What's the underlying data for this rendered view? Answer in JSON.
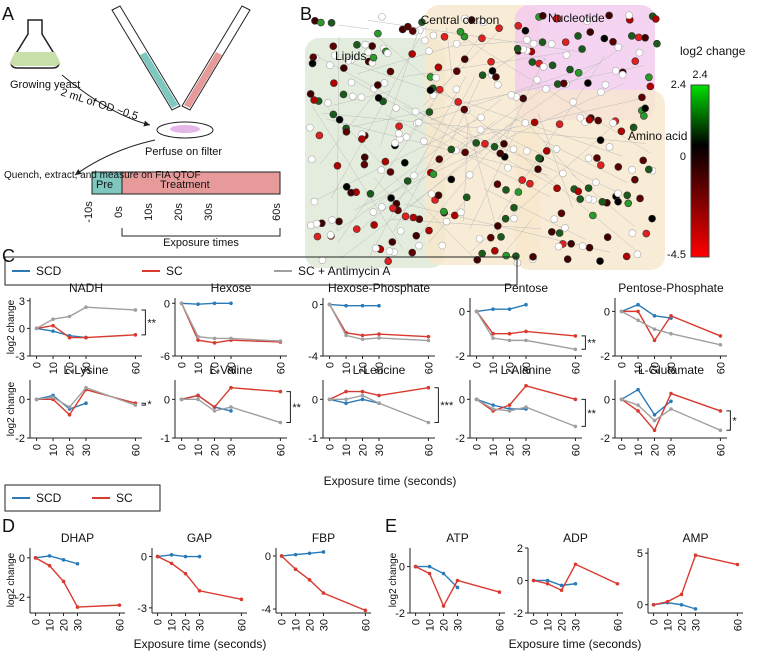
{
  "panels": {
    "letters": [
      "A",
      "B",
      "C",
      "D",
      "E"
    ],
    "a": {
      "flask": "Growing yeast",
      "transfer": "2 mL of OD ~0.5",
      "filter": "Perfuse on filter",
      "quench": "Quench, extract, and measure on FIA QTOF",
      "pre": "Pre",
      "treatment": "Treatment",
      "times": [
        "-10s",
        "0s",
        "10s",
        "20s",
        "30s",
        "60s"
      ],
      "exposure": "Exposure times"
    },
    "b": {
      "regions": [
        "Lipids",
        "Central carbon",
        "Nucleotide",
        "Amino acid"
      ],
      "colorbar_title": "log2 change",
      "colorbar_ticks": [
        "2.4",
        "0",
        "-4.5"
      ]
    },
    "ylabel": "log2 change",
    "xlabel": "Exposure time (seconds)"
  },
  "chart_data": [
    {
      "type": "line",
      "title": "NADH",
      "x": [
        0,
        10,
        20,
        30,
        60
      ],
      "xticks": [
        0,
        10,
        20,
        30,
        60
      ],
      "xlim": [
        -4,
        64
      ],
      "ylim": [
        -3,
        3.3
      ],
      "yticks": [
        -3,
        0,
        3
      ],
      "annotation": "**",
      "series": [
        {
          "name": "SCD",
          "color": "#2a7ab8",
          "values": [
            0,
            -0.3,
            -0.8,
            -1,
            null
          ]
        },
        {
          "name": "SC",
          "color": "#d93a2f",
          "values": [
            0,
            0.3,
            -1,
            -1,
            -0.7
          ]
        },
        {
          "name": "SC + Antimycin A",
          "color": "#a0a0a0",
          "values": [
            0,
            1,
            1.3,
            2.3,
            2
          ]
        }
      ]
    },
    {
      "type": "line",
      "title": "Hexose",
      "x": [
        0,
        10,
        20,
        30,
        60
      ],
      "xticks": [
        0,
        10,
        20,
        30,
        60
      ],
      "xlim": [
        -4,
        64
      ],
      "ylim": [
        -6,
        0.6
      ],
      "yticks": [
        -6,
        0
      ],
      "series": [
        {
          "name": "SCD",
          "color": "#2a7ab8",
          "values": [
            0,
            -0.1,
            0,
            0,
            null
          ]
        },
        {
          "name": "SC",
          "color": "#d93a2f",
          "values": [
            0,
            -4.2,
            -4.5,
            -4.2,
            -4.4
          ]
        },
        {
          "name": "SC + Antimycin A",
          "color": "#a0a0a0",
          "values": [
            0,
            -3.8,
            -4,
            -4,
            -4.3
          ]
        }
      ]
    },
    {
      "type": "line",
      "title": "Hexose-Phosphate",
      "x": [
        0,
        10,
        20,
        30,
        60
      ],
      "xticks": [
        0,
        10,
        20,
        30,
        60
      ],
      "xlim": [
        -4,
        64
      ],
      "ylim": [
        -4,
        0.5
      ],
      "yticks": [
        -4,
        0
      ],
      "series": [
        {
          "name": "SCD",
          "color": "#2a7ab8",
          "values": [
            0,
            -0.1,
            -0.1,
            -0.1,
            null
          ]
        },
        {
          "name": "SC",
          "color": "#d93a2f",
          "values": [
            0,
            -2.2,
            -2.4,
            -2.3,
            -2.5
          ]
        },
        {
          "name": "SC + Antimycin A",
          "color": "#a0a0a0",
          "values": [
            0,
            -2.4,
            -2.7,
            -2.6,
            -2.8
          ]
        }
      ]
    },
    {
      "type": "line",
      "title": "Pentose",
      "x": [
        0,
        10,
        20,
        30,
        60
      ],
      "xticks": [
        0,
        10,
        20,
        30,
        60
      ],
      "xlim": [
        -4,
        64
      ],
      "ylim": [
        -2,
        0.6
      ],
      "yticks": [
        -2,
        0
      ],
      "annotation": "**",
      "series": [
        {
          "name": "SCD",
          "color": "#2a7ab8",
          "values": [
            0,
            0.1,
            0.1,
            0.3,
            null
          ]
        },
        {
          "name": "SC",
          "color": "#d93a2f",
          "values": [
            0,
            -1,
            -1,
            -0.9,
            -1.1
          ]
        },
        {
          "name": "SC + Antimycin A",
          "color": "#a0a0a0",
          "values": [
            0,
            -1.2,
            -1.3,
            -1.3,
            -1.7
          ]
        }
      ]
    },
    {
      "type": "line",
      "title": "Pentose-Phosphate",
      "x": [
        0,
        10,
        20,
        30,
        60
      ],
      "xticks": [
        0,
        10,
        20,
        30,
        60
      ],
      "xlim": [
        -4,
        64
      ],
      "ylim": [
        -2,
        0.6
      ],
      "yticks": [
        -2,
        0
      ],
      "series": [
        {
          "name": "SCD",
          "color": "#2a7ab8",
          "values": [
            0,
            0.3,
            -0.2,
            -0.3,
            null
          ]
        },
        {
          "name": "SC",
          "color": "#d93a2f",
          "values": [
            0,
            0,
            -1.3,
            -0.2,
            -1.1
          ]
        },
        {
          "name": "SC + Antimycin A",
          "color": "#a0a0a0",
          "values": [
            0,
            -0.4,
            -0.8,
            -1,
            -1.5
          ]
        }
      ]
    },
    {
      "type": "line",
      "title": "L-Lysine",
      "x": [
        0,
        10,
        20,
        30,
        60
      ],
      "xticks": [
        0,
        10,
        20,
        30,
        60
      ],
      "xlim": [
        -4,
        64
      ],
      "ylim": [
        -2,
        1
      ],
      "yticks": [
        -2,
        0
      ],
      "annotation": "*",
      "series": [
        {
          "name": "SCD",
          "color": "#2a7ab8",
          "values": [
            0,
            0.2,
            -0.5,
            -0.2,
            null
          ]
        },
        {
          "name": "SC",
          "color": "#d93a2f",
          "values": [
            0,
            0,
            -0.8,
            0.5,
            -0.2
          ]
        },
        {
          "name": "SC + Antimycin A",
          "color": "#a0a0a0",
          "values": [
            0,
            0.1,
            -0.4,
            0.6,
            -0.3
          ]
        }
      ]
    },
    {
      "type": "line",
      "title": "L-Valine",
      "x": [
        0,
        10,
        20,
        30,
        60
      ],
      "xticks": [
        0,
        10,
        20,
        30,
        60
      ],
      "xlim": [
        -4,
        64
      ],
      "ylim": [
        -1,
        0.5
      ],
      "yticks": [
        -1,
        0
      ],
      "annotation": "**",
      "series": [
        {
          "name": "SCD",
          "color": "#2a7ab8",
          "values": [
            0,
            0.1,
            -0.2,
            -0.3,
            null
          ]
        },
        {
          "name": "SC",
          "color": "#d93a2f",
          "values": [
            0,
            0.1,
            -0.2,
            0.3,
            0.2
          ]
        },
        {
          "name": "SC + Antimycin A",
          "color": "#a0a0a0",
          "values": [
            0,
            0,
            -0.3,
            -0.2,
            -0.6
          ]
        }
      ]
    },
    {
      "type": "line",
      "title": "L-Leucine",
      "x": [
        0,
        10,
        20,
        30,
        60
      ],
      "xticks": [
        0,
        10,
        20,
        30,
        60
      ],
      "xlim": [
        -4,
        64
      ],
      "ylim": [
        -1,
        0.5
      ],
      "yticks": [
        -1,
        0
      ],
      "annotation": "***",
      "series": [
        {
          "name": "SCD",
          "color": "#2a7ab8",
          "values": [
            0,
            -0.1,
            0,
            -0.1,
            null
          ]
        },
        {
          "name": "SC",
          "color": "#d93a2f",
          "values": [
            0,
            0.2,
            0.2,
            0.1,
            0.3
          ]
        },
        {
          "name": "SC + Antimycin A",
          "color": "#a0a0a0",
          "values": [
            0,
            0,
            0.1,
            -0.1,
            -0.6
          ]
        }
      ]
    },
    {
      "type": "line",
      "title": "L-Alanine",
      "x": [
        0,
        10,
        20,
        30,
        60
      ],
      "xticks": [
        0,
        10,
        20,
        30,
        60
      ],
      "xlim": [
        -4,
        64
      ],
      "ylim": [
        -2,
        1
      ],
      "yticks": [
        -2,
        0
      ],
      "annotation": "**",
      "series": [
        {
          "name": "SCD",
          "color": "#2a7ab8",
          "values": [
            0,
            -0.3,
            -0.5,
            -0.5,
            null
          ]
        },
        {
          "name": "SC",
          "color": "#d93a2f",
          "values": [
            0,
            -0.6,
            -0.3,
            0.7,
            0
          ]
        },
        {
          "name": "SC + Antimycin A",
          "color": "#a0a0a0",
          "values": [
            0,
            -0.5,
            -0.6,
            -0.4,
            -1.4
          ]
        }
      ]
    },
    {
      "type": "line",
      "title": "L-Glutamate",
      "x": [
        0,
        10,
        20,
        30,
        60
      ],
      "xticks": [
        0,
        10,
        20,
        30,
        60
      ],
      "xlim": [
        -4,
        64
      ],
      "ylim": [
        -2,
        1
      ],
      "yticks": [
        -2,
        0
      ],
      "annotation": "*",
      "series": [
        {
          "name": "SCD",
          "color": "#2a7ab8",
          "values": [
            0,
            0.5,
            -0.8,
            -0.1,
            null
          ]
        },
        {
          "name": "SC",
          "color": "#d93a2f",
          "values": [
            0,
            -0.6,
            -1.6,
            0.3,
            -0.6
          ]
        },
        {
          "name": "SC + Antimycin A",
          "color": "#a0a0a0",
          "values": [
            0,
            -0.3,
            -1.1,
            -0.5,
            -1.6
          ]
        }
      ]
    },
    {
      "type": "line",
      "title": "DHAP",
      "x": [
        0,
        10,
        20,
        30,
        60
      ],
      "xticks": [
        0,
        10,
        20,
        30,
        60
      ],
      "xlim": [
        -4,
        64
      ],
      "ylim": [
        -2.8,
        0.5
      ],
      "yticks": [
        -2,
        0
      ],
      "series": [
        {
          "name": "SCD",
          "color": "#2a7ab8",
          "values": [
            0,
            0.1,
            -0.1,
            -0.3,
            null
          ]
        },
        {
          "name": "SC",
          "color": "#d93a2f",
          "values": [
            0,
            -0.4,
            -1.2,
            -2.5,
            -2.4
          ]
        }
      ]
    },
    {
      "type": "line",
      "title": "GAP",
      "x": [
        0,
        10,
        20,
        30,
        60
      ],
      "xticks": [
        0,
        10,
        20,
        30,
        60
      ],
      "xlim": [
        -4,
        64
      ],
      "ylim": [
        -3.3,
        0.5
      ],
      "yticks": [
        -3,
        0
      ],
      "series": [
        {
          "name": "SCD",
          "color": "#2a7ab8",
          "values": [
            0,
            0.1,
            0,
            0,
            null
          ]
        },
        {
          "name": "SC",
          "color": "#d93a2f",
          "values": [
            0,
            -0.4,
            -1,
            -2,
            -2.5
          ]
        }
      ]
    },
    {
      "type": "line",
      "title": "FBP",
      "x": [
        0,
        10,
        20,
        30,
        60
      ],
      "xticks": [
        0,
        10,
        20,
        30,
        60
      ],
      "xlim": [
        -4,
        64
      ],
      "ylim": [
        -4.3,
        0.6
      ],
      "yticks": [
        -4,
        0
      ],
      "series": [
        {
          "name": "SCD",
          "color": "#2a7ab8",
          "values": [
            0,
            0.1,
            0.2,
            0.3,
            null
          ]
        },
        {
          "name": "SC",
          "color": "#d93a2f",
          "values": [
            0,
            -1,
            -1.8,
            -2.8,
            -4.1
          ]
        }
      ]
    },
    {
      "type": "line",
      "title": "ATP",
      "x": [
        0,
        10,
        20,
        30,
        60
      ],
      "xticks": [
        0,
        10,
        20,
        30,
        60
      ],
      "xlim": [
        -4,
        64
      ],
      "ylim": [
        -2,
        0.8
      ],
      "yticks": [
        -2,
        0
      ],
      "series": [
        {
          "name": "SCD",
          "color": "#2a7ab8",
          "values": [
            0,
            0,
            -0.3,
            -0.9,
            null
          ]
        },
        {
          "name": "SC",
          "color": "#d93a2f",
          "values": [
            0,
            -0.3,
            -1.7,
            -0.6,
            -1.1
          ]
        }
      ]
    },
    {
      "type": "line",
      "title": "ADP",
      "x": [
        0,
        10,
        20,
        30,
        60
      ],
      "xticks": [
        0,
        10,
        20,
        30,
        60
      ],
      "xlim": [
        -4,
        64
      ],
      "ylim": [
        -2,
        2
      ],
      "yticks": [
        -2,
        0,
        2
      ],
      "series": [
        {
          "name": "SCD",
          "color": "#2a7ab8",
          "values": [
            0,
            0,
            -0.3,
            -0.2,
            null
          ]
        },
        {
          "name": "SC",
          "color": "#d93a2f",
          "values": [
            0,
            -0.2,
            -0.6,
            1,
            -0.2
          ]
        }
      ]
    },
    {
      "type": "line",
      "title": "AMP",
      "x": [
        0,
        10,
        20,
        30,
        60
      ],
      "xticks": [
        0,
        10,
        20,
        30,
        60
      ],
      "xlim": [
        -4,
        64
      ],
      "ylim": [
        -0.8,
        5.5
      ],
      "yticks": [
        0,
        5
      ],
      "series": [
        {
          "name": "SCD",
          "color": "#2a7ab8",
          "values": [
            0,
            0.2,
            0,
            -0.4,
            null
          ]
        },
        {
          "name": "SC",
          "color": "#d93a2f",
          "values": [
            0,
            0.3,
            1,
            4.8,
            3.9
          ]
        }
      ]
    }
  ]
}
